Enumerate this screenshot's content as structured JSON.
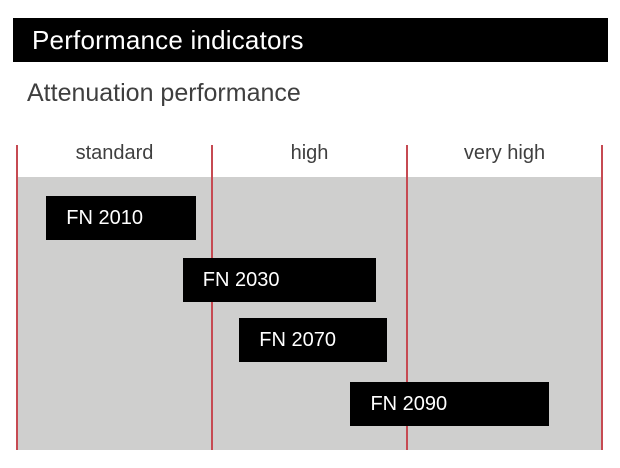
{
  "header": {
    "title": "Performance indicators",
    "bar_color": "#000000",
    "text_color": "#ffffff"
  },
  "subtitle": "Attenuation performance",
  "chart_data": {
    "type": "bar",
    "subtype": "horizontal-range-bars",
    "title": "Attenuation performance",
    "categories": [
      "standard",
      "high",
      "very high"
    ],
    "axis": {
      "orientation": "horizontal",
      "min": 0,
      "max": 3,
      "unit": "category-width",
      "gridlines": "vertical red lines at category boundaries",
      "legend": false
    },
    "bars": [
      {
        "label": "FN 2010",
        "start": 0.15,
        "end": 0.92,
        "covers": [
          "standard"
        ]
      },
      {
        "label": "FN 2030",
        "start": 0.85,
        "end": 1.84,
        "covers": [
          "standard",
          "high"
        ]
      },
      {
        "label": "FN 2070",
        "start": 1.14,
        "end": 1.9,
        "covers": [
          "high"
        ]
      },
      {
        "label": "FN 2090",
        "start": 1.71,
        "end": 2.73,
        "covers": [
          "high",
          "very high"
        ]
      }
    ],
    "colors": {
      "bar": "#000000",
      "bar_text": "#ffffff",
      "plot_background": "#cfcfce",
      "gridline": "#c64a52",
      "label_text": "#3f3f3f"
    }
  }
}
